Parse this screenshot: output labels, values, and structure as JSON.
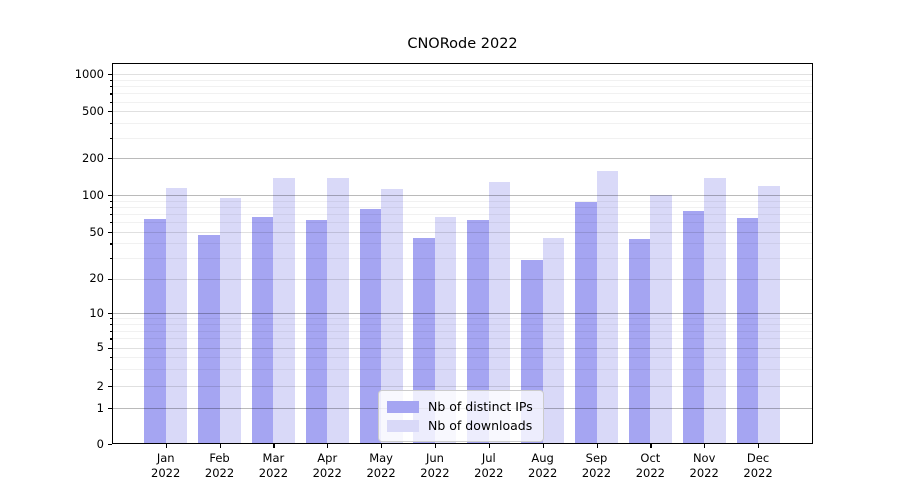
{
  "figure": {
    "title": "CNORode 2022"
  },
  "chart_data": {
    "type": "bar",
    "title": "CNORode 2022",
    "categories": [
      "Jan 2022",
      "Feb 2022",
      "Mar 2022",
      "Apr 2022",
      "May 2022",
      "Jun 2022",
      "Jul 2022",
      "Aug 2022",
      "Sep 2022",
      "Oct 2022",
      "Nov 2022",
      "Dec 2022"
    ],
    "series": [
      {
        "name": "Nb of distinct IPs",
        "color": "#a5a5f2",
        "values": [
          63,
          46,
          65,
          62,
          76,
          44,
          61,
          28,
          86,
          43,
          73,
          64
        ]
      },
      {
        "name": "Nb of downloads",
        "color": "#d9d9f8",
        "values": [
          112,
          92,
          135,
          136,
          109,
          65,
          125,
          44,
          153,
          98,
          135,
          116
        ]
      }
    ],
    "yscale": "symlog",
    "ylim": [
      0,
      1000
    ],
    "yticks": [
      0,
      1,
      2,
      5,
      10,
      20,
      50,
      100,
      200,
      500,
      1000
    ],
    "y_tick_labels": [
      "0",
      "1",
      "2",
      "5",
      "10",
      "20",
      "50",
      "100",
      "200",
      "500",
      "1000"
    ],
    "grid": true,
    "legend": {
      "position": "lower-center"
    }
  }
}
